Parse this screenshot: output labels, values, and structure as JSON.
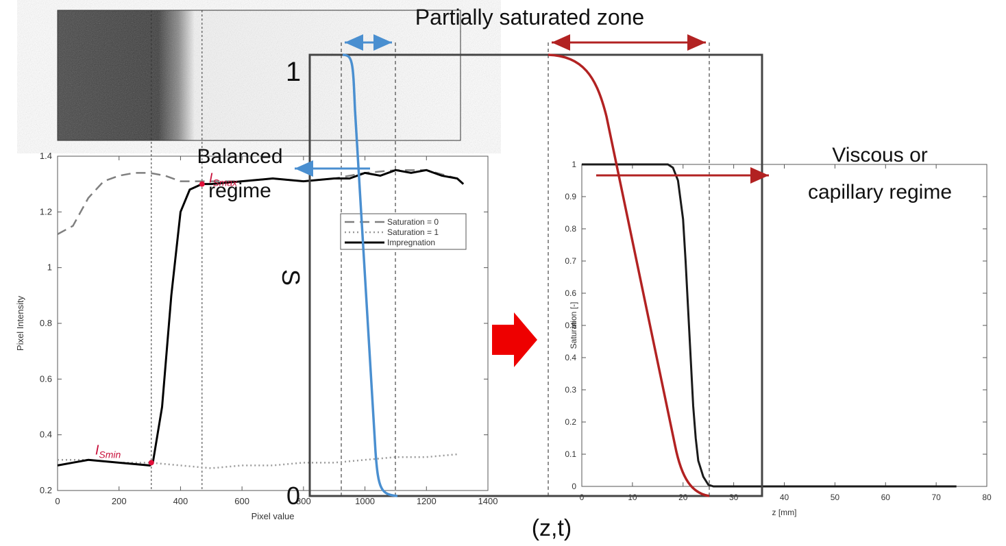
{
  "chart_data": [
    {
      "type": "line",
      "x_label": "Pixel value",
      "y_label": "Pixel Intensity",
      "xlim": [
        0,
        1400
      ],
      "xticks": [
        0,
        200,
        400,
        600,
        800,
        1000,
        1200,
        1400
      ],
      "ylim": [
        0.2,
        1.4
      ],
      "yticks": [
        0.2,
        0.4,
        0.6,
        0.8,
        1,
        1.2,
        1.4
      ],
      "grid": false,
      "legend": "inside",
      "series": [
        {
          "name": "Saturation = 0",
          "color": "#7f7f7f",
          "dash": "dashed",
          "x": [
            0,
            50,
            100,
            150,
            200,
            250,
            300,
            350,
            400,
            450,
            500,
            600,
            700,
            800,
            900,
            1000,
            1100,
            1200,
            1300,
            1320
          ],
          "values": [
            1.12,
            1.15,
            1.25,
            1.31,
            1.33,
            1.34,
            1.34,
            1.33,
            1.31,
            1.31,
            1.31,
            1.31,
            1.32,
            1.31,
            1.32,
            1.34,
            1.35,
            1.35,
            1.32,
            1.3
          ]
        },
        {
          "name": "Saturation = 1",
          "color": "#9a9a9a",
          "dash": "dotted",
          "x": [
            0,
            100,
            200,
            300,
            400,
            500,
            600,
            700,
            800,
            900,
            1000,
            1100,
            1200,
            1300
          ],
          "values": [
            0.31,
            0.31,
            0.3,
            0.3,
            0.29,
            0.28,
            0.29,
            0.29,
            0.3,
            0.3,
            0.31,
            0.32,
            0.32,
            0.33
          ]
        },
        {
          "name": "Impregnation",
          "color": "#000000",
          "dash": "solid",
          "x": [
            0,
            50,
            100,
            200,
            300,
            310,
            340,
            370,
            400,
            430,
            470,
            500,
            600,
            700,
            800,
            900,
            950,
            1000,
            1050,
            1100,
            1150,
            1200,
            1250,
            1300,
            1320
          ],
          "values": [
            0.29,
            0.3,
            0.31,
            0.3,
            0.29,
            0.3,
            0.5,
            0.9,
            1.2,
            1.28,
            1.3,
            1.3,
            1.31,
            1.32,
            1.31,
            1.32,
            1.32,
            1.34,
            1.33,
            1.35,
            1.34,
            1.35,
            1.33,
            1.32,
            1.3
          ]
        }
      ],
      "vlines": [
        305,
        470
      ],
      "points": [
        {
          "label": "I",
          "sub": "Smin",
          "x": 305,
          "y": 0.3
        },
        {
          "label": "I",
          "sub": "Smax",
          "x": 470,
          "y": 1.3
        }
      ]
    },
    {
      "type": "line",
      "x_label": "z [mm]",
      "y_label": "Saturation [-]",
      "xlim": [
        0,
        80
      ],
      "xticks": [
        0,
        10,
        20,
        30,
        40,
        50,
        60,
        70,
        80
      ],
      "ylim": [
        0,
        1
      ],
      "yticks": [
        0,
        0.1,
        0.2,
        0.3,
        0.4,
        0.5,
        0.6,
        0.7,
        0.8,
        0.9,
        1
      ],
      "grid": false,
      "series": [
        {
          "color": "#1a1a1a",
          "dash": "solid",
          "x": [
            0,
            17,
            18,
            19,
            20,
            20.5,
            21,
            21.5,
            22,
            22.5,
            23,
            24,
            25,
            26,
            74
          ],
          "values": [
            1,
            1,
            0.99,
            0.95,
            0.83,
            0.7,
            0.55,
            0.4,
            0.25,
            0.15,
            0.08,
            0.03,
            0.005,
            0,
            0
          ]
        }
      ]
    }
  ],
  "schematic": {
    "title": "Partially saturated zone",
    "s_max": "1",
    "s_min": "0",
    "y_label": "S",
    "x_label": "(z,t)",
    "left_regime": [
      "Balanced",
      "regime"
    ],
    "right_regime": [
      "Viscous or",
      "capillary regime"
    ]
  }
}
